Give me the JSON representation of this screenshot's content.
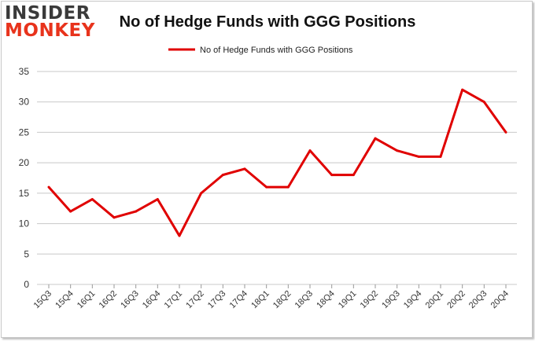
{
  "logo": {
    "top": "INSIDER",
    "bottom": "MONKEY"
  },
  "chart_data": {
    "type": "line",
    "title": "No of Hedge Funds with GGG Positions",
    "xlabel": "",
    "ylabel": "",
    "categories": [
      "15Q3",
      "15Q4",
      "16Q1",
      "16Q2",
      "16Q3",
      "16Q4",
      "17Q1",
      "17Q2",
      "17Q3",
      "17Q4",
      "18Q1",
      "18Q2",
      "18Q3",
      "18Q4",
      "19Q1",
      "19Q2",
      "19Q3",
      "19Q4",
      "20Q1",
      "20Q2",
      "20Q3",
      "20Q4"
    ],
    "series": [
      {
        "name": "No of Hedge Funds with GGG Positions",
        "color": "#e00000",
        "values": [
          16,
          12,
          14,
          11,
          12,
          14,
          8,
          15,
          18,
          19,
          16,
          16,
          22,
          18,
          18,
          24,
          22,
          21,
          21,
          32,
          30,
          25
        ]
      }
    ],
    "ylim": [
      0,
      35
    ],
    "yticks": [
      0,
      5,
      10,
      15,
      20,
      25,
      30,
      35
    ],
    "grid": true,
    "legend": "top-center"
  }
}
